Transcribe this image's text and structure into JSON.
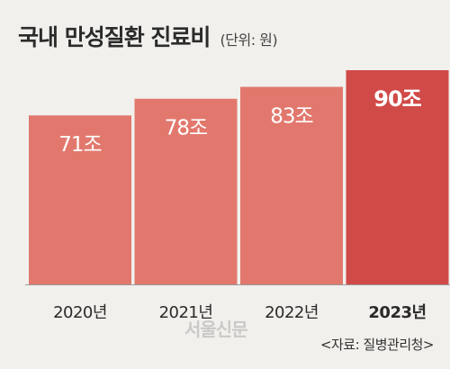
{
  "title": "국내 만성질환 진료비",
  "unit": "(단위: 원)",
  "source": "<자료: 질병관리청>",
  "watermark": "서울신문",
  "colors": {
    "bar": "#e2786d",
    "highlight": "#d04a48",
    "background": "#f1f0ec",
    "label_light": "#ffffff"
  },
  "chart_data": {
    "type": "bar",
    "title": "국내 만성질환 진료비",
    "unit": "(단위: 원)",
    "categories": [
      "2020년",
      "2021년",
      "2022년",
      "2023년"
    ],
    "values": [
      71,
      78,
      83,
      90
    ],
    "value_labels": [
      "71조",
      "78조",
      "83조",
      "90조"
    ],
    "highlight_index": 3,
    "ylim": [
      0,
      90
    ],
    "grid": false,
    "legend": "none"
  }
}
